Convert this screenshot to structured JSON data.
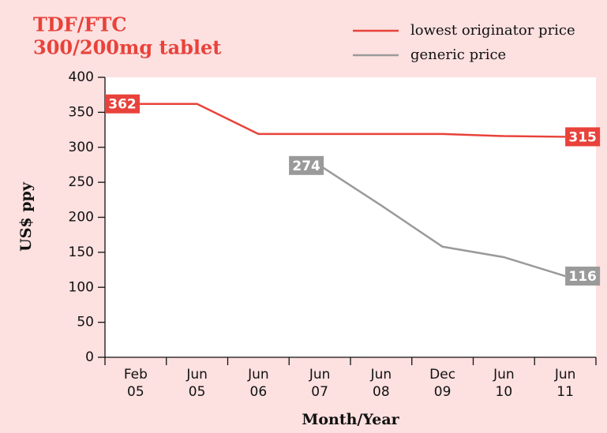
{
  "chart_data": {
    "type": "line",
    "title": [
      "TDF/FTC",
      "300/200mg tablet"
    ],
    "x_label": "Month/Year",
    "y_label": "US$ ppy",
    "categories": [
      [
        "Feb",
        "05"
      ],
      [
        "Jun",
        "05"
      ],
      [
        "Jun",
        "06"
      ],
      [
        "Jun",
        "07"
      ],
      [
        "Jun",
        "08"
      ],
      [
        "Dec",
        "09"
      ],
      [
        "Jun",
        "10"
      ],
      [
        "Jun",
        "11"
      ]
    ],
    "series": [
      {
        "name": "lowest originator price",
        "color": "#e8423a",
        "values": [
          362,
          362,
          319,
          319,
          319,
          319,
          316,
          315
        ]
      },
      {
        "name": "generic price",
        "color": "#9a9a9a",
        "values": [
          null,
          null,
          null,
          274,
          217,
          158,
          143,
          116
        ]
      }
    ],
    "ylim": [
      0,
      400
    ],
    "yticks": [
      0,
      50,
      100,
      150,
      200,
      250,
      300,
      350,
      400
    ],
    "legend": "top-right"
  }
}
